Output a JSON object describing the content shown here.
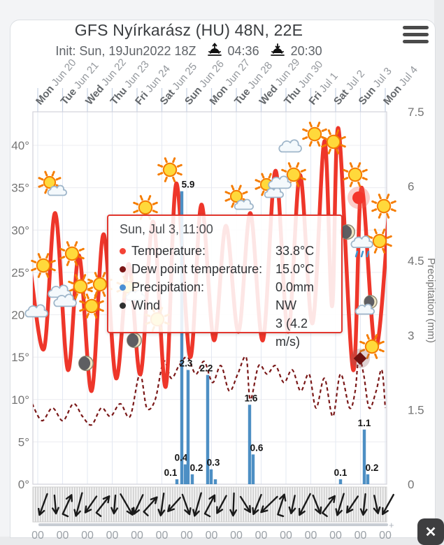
{
  "header": {
    "title": "GFS Nyírkarász (HU) 48N, 22E",
    "init_label": "Init: Sun, 19Jun2022 18Z",
    "sunrise_time": "04:36",
    "sunset_time": "20:30"
  },
  "menu": {
    "icon": "hamburger-icon"
  },
  "close": {
    "label": "✕"
  },
  "tooltip": {
    "title": "Sun, Jul 3, 11:00",
    "rows": [
      {
        "label": "Temperature:",
        "values": [
          "33.8°C"
        ],
        "color": "#f44336"
      },
      {
        "label": "Dew point temperature:",
        "values": [
          "15.0°C"
        ],
        "color": "#7b1616"
      },
      {
        "label": "Precipitation:",
        "values": [
          "0.0mm"
        ],
        "color": "#4a8fd4"
      },
      {
        "label": "Wind",
        "values": [
          "NW",
          "3 (4.2 m/s)"
        ],
        "color": "#2f2f2f"
      }
    ]
  },
  "chart_data": {
    "type": "line",
    "title": "GFS Nyírkarász (HU) 48N, 22E",
    "days": [
      {
        "dow": "Mon",
        "date": "Jun 20"
      },
      {
        "dow": "Tue",
        "date": "Jun 21"
      },
      {
        "dow": "Wed",
        "date": "Jun 22"
      },
      {
        "dow": "Thu",
        "date": "Jun 23"
      },
      {
        "dow": "Fri",
        "date": "Jun 24"
      },
      {
        "dow": "Sat",
        "date": "Jun 25"
      },
      {
        "dow": "Sun",
        "date": "Jun 26"
      },
      {
        "dow": "Mon",
        "date": "Jun 27"
      },
      {
        "dow": "Tue",
        "date": "Jun 28"
      },
      {
        "dow": "Wed",
        "date": "Jun 29"
      },
      {
        "dow": "Thu",
        "date": "Jun 30"
      },
      {
        "dow": "Fri",
        "date": "Jul 1"
      },
      {
        "dow": "Sat",
        "date": "Jul 2"
      },
      {
        "dow": "Sun",
        "date": "Jul 3"
      },
      {
        "dow": "Mon",
        "date": "Jul 4"
      }
    ],
    "hour_label": "00",
    "y_left": {
      "ticks": [
        0,
        5,
        10,
        15,
        20,
        25,
        30,
        35,
        40
      ],
      "suffix": "°",
      "range": [
        0,
        44
      ]
    },
    "y_right": {
      "label": "Precipitation (mm)",
      "ticks": [
        "0",
        "1.5",
        "3",
        "4.5",
        "6",
        "7.5"
      ],
      "tick_values": [
        0,
        1.5,
        3,
        4.5,
        6,
        7.5
      ],
      "range": [
        0,
        7.5
      ]
    },
    "series": {
      "temperature_c": {
        "color": "#ee362a",
        "points": [
          [
            44,
            25
          ],
          [
            63,
            16
          ],
          [
            79,
            32
          ],
          [
            97,
            13.5
          ],
          [
            113,
            27
          ],
          [
            131,
            11
          ],
          [
            148,
            29.5
          ],
          [
            166,
            12.5
          ],
          [
            184,
            26
          ],
          [
            201,
            13
          ],
          [
            219,
            31
          ],
          [
            237,
            11.5
          ],
          [
            252,
            35.5
          ],
          [
            272,
            15
          ],
          [
            288,
            33
          ],
          [
            306,
            17
          ],
          [
            323,
            30.5
          ],
          [
            341,
            18
          ],
          [
            358,
            32
          ],
          [
            376,
            17
          ],
          [
            394,
            37
          ],
          [
            412,
            18
          ],
          [
            429,
            36.5
          ],
          [
            447,
            19
          ],
          [
            464,
            40.5
          ],
          [
            475,
            21
          ],
          [
            484,
            42
          ],
          [
            505,
            13.5
          ],
          [
            517,
            35
          ],
          [
            537,
            16
          ],
          [
            556,
            32
          ]
        ]
      },
      "dew_point_c": {
        "color": "#7a1818",
        "style": "dashed",
        "points": [
          [
            46,
            9.5
          ],
          [
            60,
            7.5
          ],
          [
            75,
            9
          ],
          [
            90,
            7.5
          ],
          [
            105,
            9.5
          ],
          [
            118,
            8
          ],
          [
            131,
            7
          ],
          [
            145,
            9
          ],
          [
            158,
            8
          ],
          [
            172,
            9.5
          ],
          [
            186,
            8
          ],
          [
            200,
            13
          ],
          [
            210,
            9
          ],
          [
            222,
            10
          ],
          [
            234,
            14.5
          ],
          [
            245,
            12.5
          ],
          [
            256,
            14
          ],
          [
            268,
            15
          ],
          [
            280,
            13
          ],
          [
            292,
            14.5
          ],
          [
            304,
            12
          ],
          [
            316,
            14
          ],
          [
            328,
            11
          ],
          [
            340,
            13
          ],
          [
            352,
            15
          ],
          [
            358,
            10
          ],
          [
            370,
            14
          ],
          [
            382,
            13
          ],
          [
            394,
            14
          ],
          [
            406,
            12
          ],
          [
            418,
            13.5
          ],
          [
            430,
            11
          ],
          [
            442,
            13
          ],
          [
            452,
            9
          ],
          [
            464,
            12.5
          ],
          [
            476,
            8
          ],
          [
            487,
            13
          ],
          [
            500,
            9
          ],
          [
            508,
            11
          ],
          [
            513,
            15
          ],
          [
            520,
            13
          ],
          [
            528,
            9
          ],
          [
            538,
            11
          ],
          [
            546,
            13.5
          ],
          [
            551,
            9
          ]
        ]
      },
      "precipitation_mm": {
        "color": "#4d8fc4",
        "bars": [
          {
            "x": 253,
            "mm": 0.1,
            "lx": -9,
            "show_label": true
          },
          {
            "x": 260,
            "mm": 5.9,
            "lx": 9,
            "show_label": true
          },
          {
            "x": 265,
            "mm": 0.4,
            "lx": -6,
            "show_label": true
          },
          {
            "x": 269,
            "mm": 2.3,
            "lx": -3,
            "show_label": true
          },
          {
            "x": 275,
            "mm": 0.2,
            "lx": 6,
            "show_label": true
          },
          {
            "x": 297,
            "mm": 2.2,
            "lx": -2,
            "show_label": true
          },
          {
            "x": 302,
            "mm": 0.3,
            "lx": 3,
            "show_label": true
          },
          {
            "x": 308,
            "mm": 0.1,
            "lx": 0,
            "show_label": false
          },
          {
            "x": 357,
            "mm": 1.6,
            "lx": 2,
            "show_label": true
          },
          {
            "x": 362,
            "mm": 0.6,
            "lx": 5,
            "show_label": true
          },
          {
            "x": 487,
            "mm": 0.1,
            "lx": 0,
            "show_label": true
          },
          {
            "x": 521,
            "mm": 1.1,
            "lx": 0,
            "show_label": true
          },
          {
            "x": 526,
            "mm": 0.2,
            "lx": 6,
            "show_label": true
          }
        ]
      }
    },
    "markers": [
      {
        "type": "temperature",
        "x": 513,
        "y": 283,
        "value": "33.8°C"
      },
      {
        "type": "dew_point",
        "x": 515,
        "y": 513,
        "value": "15.0°C"
      }
    ],
    "weather_icons": [
      {
        "t": "suncloud",
        "x": 78,
        "y": 268
      },
      {
        "t": "suncloud",
        "x": 190,
        "y": 418
      },
      {
        "t": "suncloud",
        "x": 345,
        "y": 288
      },
      {
        "t": "suncloud",
        "x": 388,
        "y": 271
      },
      {
        "t": "sun",
        "x": 62,
        "y": 380
      },
      {
        "t": "sun",
        "x": 103,
        "y": 363
      },
      {
        "t": "sun",
        "x": 115,
        "y": 410
      },
      {
        "t": "sun",
        "x": 143,
        "y": 407
      },
      {
        "t": "sun",
        "x": 131,
        "y": 438
      },
      {
        "t": "sun",
        "x": 208,
        "y": 297
      },
      {
        "t": "sun",
        "x": 243,
        "y": 243
      },
      {
        "t": "sun",
        "x": 225,
        "y": 457
      },
      {
        "t": "sun",
        "x": 420,
        "y": 250
      },
      {
        "t": "sun",
        "x": 450,
        "y": 192
      },
      {
        "t": "sun",
        "x": 477,
        "y": 203
      },
      {
        "t": "sun",
        "x": 508,
        "y": 250
      },
      {
        "t": "sun",
        "x": 549,
        "y": 295
      },
      {
        "t": "sun",
        "x": 543,
        "y": 345
      },
      {
        "t": "sun",
        "x": 532,
        "y": 496
      },
      {
        "t": "cloud",
        "x": 55,
        "y": 448
      },
      {
        "t": "cloud",
        "x": 88,
        "y": 420
      },
      {
        "t": "cloud",
        "x": 96,
        "y": 433
      },
      {
        "t": "cloud",
        "x": 403,
        "y": 264
      },
      {
        "t": "cloud",
        "x": 418,
        "y": 212
      },
      {
        "t": "moon",
        "x": 123,
        "y": 520
      },
      {
        "t": "moon",
        "x": 192,
        "y": 487
      },
      {
        "t": "moon",
        "x": 497,
        "y": 332
      },
      {
        "t": "mooncloud",
        "x": 528,
        "y": 438
      },
      {
        "t": "raincloud",
        "x": 520,
        "y": 352
      }
    ],
    "wind": {
      "selected": {
        "dir": "NW",
        "beaufort": "3",
        "speed": "4.2 m/s"
      },
      "arrows": [
        [
          62,
          200,
          32,
          0
        ],
        [
          79,
          175,
          26,
          0
        ],
        [
          96,
          25,
          30,
          1
        ],
        [
          113,
          195,
          34,
          0
        ],
        [
          130,
          215,
          28,
          0
        ],
        [
          147,
          38,
          30,
          1
        ],
        [
          164,
          185,
          26,
          0
        ],
        [
          181,
          150,
          34,
          0
        ],
        [
          198,
          205,
          30,
          0
        ],
        [
          215,
          42,
          28,
          1
        ],
        [
          232,
          188,
          32,
          0
        ],
        [
          249,
          222,
          26,
          0
        ],
        [
          266,
          160,
          30,
          0
        ],
        [
          283,
          196,
          34,
          0
        ],
        [
          300,
          28,
          30,
          1
        ],
        [
          317,
          208,
          28,
          0
        ],
        [
          334,
          182,
          32,
          0
        ],
        [
          351,
          148,
          26,
          0
        ],
        [
          368,
          202,
          30,
          0
        ],
        [
          385,
          226,
          32,
          0
        ],
        [
          402,
          18,
          30,
          1
        ],
        [
          419,
          192,
          26,
          0
        ],
        [
          436,
          207,
          34,
          0
        ],
        [
          453,
          158,
          28,
          0
        ],
        [
          470,
          36,
          30,
          1
        ],
        [
          487,
          197,
          32,
          0
        ],
        [
          504,
          214,
          28,
          0
        ],
        [
          521,
          186,
          30,
          0
        ],
        [
          538,
          168,
          26,
          0
        ],
        [
          555,
          209,
          32,
          0
        ]
      ]
    }
  }
}
